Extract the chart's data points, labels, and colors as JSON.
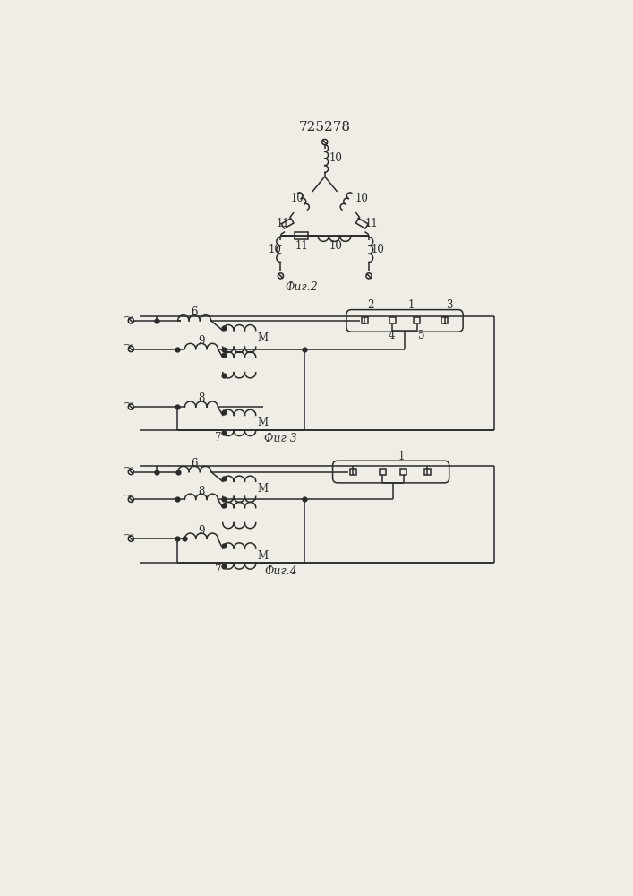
{
  "title": "725278",
  "fig2_label": "Фиг.2",
  "fig3_label": "Фиг 3",
  "fig4_label": "Фиг.4",
  "bg_color": "#f0ede6",
  "line_color": "#2a2a2a",
  "title_fontsize": 11,
  "label_fontsize": 9,
  "annot_fontsize": 8.5
}
